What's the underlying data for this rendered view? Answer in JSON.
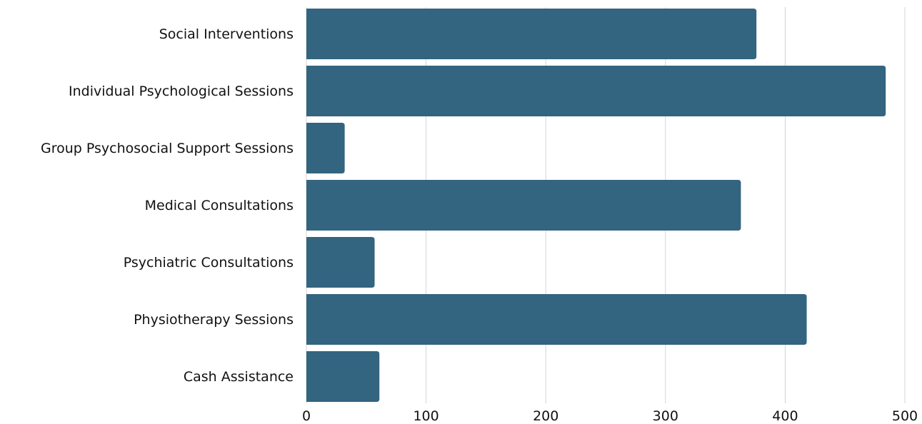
{
  "colors": {
    "bar": "#336480",
    "grid": "#d4d4d4",
    "text": "#111111"
  },
  "chart_data": {
    "type": "bar",
    "orientation": "horizontal",
    "categories": [
      "Social Interventions",
      "Individual Psychological Sessions",
      "Group Psychosocial Support Sessions",
      "Medical Consultations",
      "Psychiatric Consultations",
      "Physiotherapy Sessions",
      "Cash Assistance"
    ],
    "values": [
      376,
      484,
      32,
      363,
      57,
      418,
      61
    ],
    "x_ticks": [
      "0",
      "100",
      "200",
      "300",
      "400",
      "500"
    ],
    "xlim": [
      0,
      500
    ],
    "grid": "vertical",
    "legend": "none"
  }
}
